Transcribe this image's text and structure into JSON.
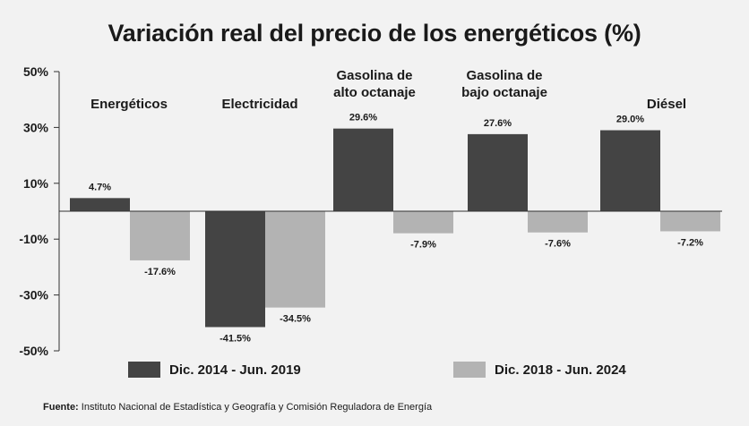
{
  "title": "Variación real del precio de los energéticos (%)",
  "colors": {
    "series1": "#444444",
    "series2": "#b3b3b3",
    "axis": "#333333"
  },
  "chart_data": {
    "type": "bar",
    "title": "Variación real del precio de los energéticos (%)",
    "categories": [
      [
        "Energéticos"
      ],
      [
        "Electricidad"
      ],
      [
        "Gasolina de",
        "alto octanaje"
      ],
      [
        "Gasolina de",
        "bajo octanaje"
      ],
      [
        "Diésel"
      ]
    ],
    "series": [
      {
        "name": "Dic. 2014 - Jun. 2019",
        "values": [
          4.7,
          -41.5,
          29.6,
          27.6,
          29.0
        ]
      },
      {
        "name": "Dic. 2018 - Jun. 2024",
        "values": [
          -17.6,
          -34.5,
          -7.9,
          -7.6,
          -7.2
        ]
      }
    ],
    "value_labels": [
      [
        "4.7%",
        "-41.5%",
        "29.6%",
        "27.6%",
        "29.0%"
      ],
      [
        "-17.6%",
        "-34.5%",
        "-7.9%",
        "-7.6%",
        "-7.2%"
      ]
    ],
    "yticks": [
      50,
      30,
      10,
      -10,
      -30,
      -50
    ],
    "ytick_labels": [
      "50%",
      "30%",
      "10%",
      "-10%",
      "-30%",
      "-50%"
    ],
    "ylim": [
      -50,
      50
    ],
    "grid": false,
    "legend_position": "bottom"
  },
  "legend": [
    {
      "label": "Dic. 2014 - Jun. 2019"
    },
    {
      "label": "Dic. 2018 - Jun. 2024"
    }
  ],
  "source": {
    "prefix": "Fuente:",
    "text": " Instituto Nacional de Estadística y Geografía y Comisión Reguladora de Energía"
  }
}
